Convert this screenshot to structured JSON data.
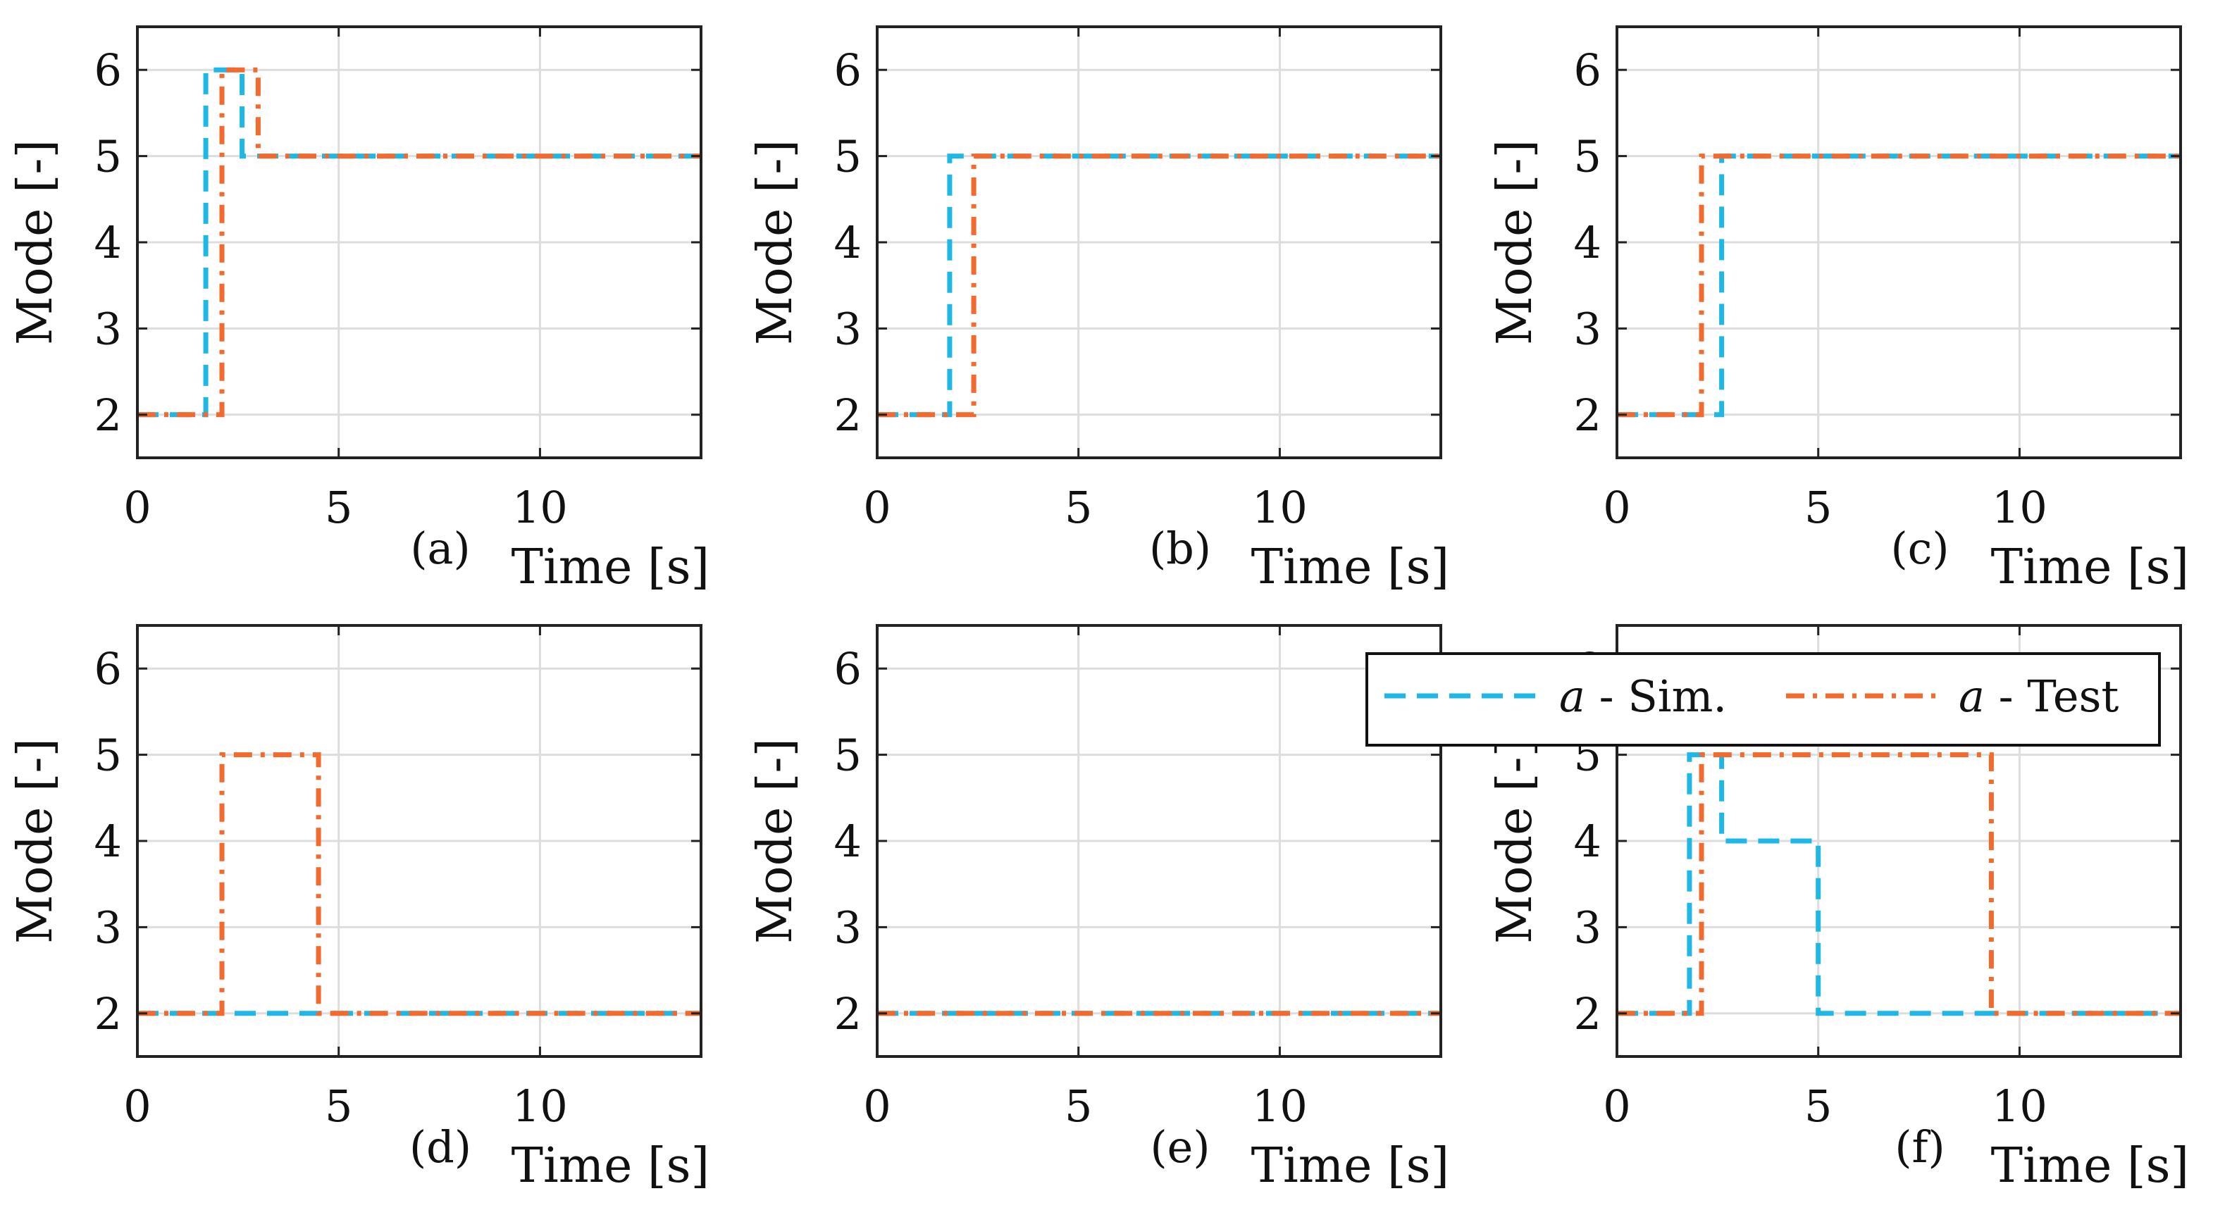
{
  "chart_data": [
    {
      "type": "line",
      "panel": "(a)",
      "xlabel": "Time [s]",
      "ylabel": "Mode [-]",
      "xlim": [
        0,
        14
      ],
      "ylim": [
        1.5,
        6.5
      ],
      "xticks": [
        0,
        5,
        10
      ],
      "yticks": [
        2,
        3,
        4,
        5,
        6
      ],
      "grid": true,
      "series": [
        {
          "name": "Sim.",
          "x": [
            0,
            1.7,
            1.7,
            2.6,
            2.6,
            14
          ],
          "y": [
            2,
            2,
            6,
            6,
            5,
            5
          ]
        },
        {
          "name": "Test",
          "x": [
            0,
            2.1,
            2.1,
            3.0,
            3.0,
            14
          ],
          "y": [
            2,
            2,
            6,
            6,
            5,
            5
          ]
        }
      ]
    },
    {
      "type": "line",
      "panel": "(b)",
      "xlabel": "Time [s]",
      "ylabel": "Mode [-]",
      "xlim": [
        0,
        14
      ],
      "ylim": [
        1.5,
        6.5
      ],
      "xticks": [
        0,
        5,
        10
      ],
      "yticks": [
        2,
        3,
        4,
        5,
        6
      ],
      "grid": true,
      "series": [
        {
          "name": "Sim.",
          "x": [
            0,
            1.8,
            1.8,
            14
          ],
          "y": [
            2,
            2,
            5,
            5
          ]
        },
        {
          "name": "Test",
          "x": [
            0,
            2.4,
            2.4,
            14
          ],
          "y": [
            2,
            2,
            5,
            5
          ]
        }
      ]
    },
    {
      "type": "line",
      "panel": "(c)",
      "xlabel": "Time [s]",
      "ylabel": "Mode [-]",
      "xlim": [
        0,
        14
      ],
      "ylim": [
        1.5,
        6.5
      ],
      "xticks": [
        0,
        5,
        10
      ],
      "yticks": [
        2,
        3,
        4,
        5,
        6
      ],
      "grid": true,
      "series": [
        {
          "name": "Sim.",
          "x": [
            0,
            2.6,
            2.6,
            14
          ],
          "y": [
            2,
            2,
            5,
            5
          ]
        },
        {
          "name": "Test",
          "x": [
            0,
            2.1,
            2.1,
            14
          ],
          "y": [
            2,
            2,
            5,
            5
          ]
        }
      ]
    },
    {
      "type": "line",
      "panel": "(d)",
      "xlabel": "Time [s]",
      "ylabel": "Mode [-]",
      "xlim": [
        0,
        14
      ],
      "ylim": [
        1.5,
        6.5
      ],
      "xticks": [
        0,
        5,
        10
      ],
      "yticks": [
        2,
        3,
        4,
        5,
        6
      ],
      "grid": true,
      "series": [
        {
          "name": "Sim.",
          "x": [
            0,
            14
          ],
          "y": [
            2,
            2
          ]
        },
        {
          "name": "Test",
          "x": [
            0,
            2.1,
            2.1,
            4.5,
            4.5,
            14
          ],
          "y": [
            2,
            2,
            5,
            5,
            2,
            2
          ]
        }
      ]
    },
    {
      "type": "line",
      "panel": "(e)",
      "xlabel": "Time [s]",
      "ylabel": "Mode [-]",
      "xlim": [
        0,
        14
      ],
      "ylim": [
        1.5,
        6.5
      ],
      "xticks": [
        0,
        5,
        10
      ],
      "yticks": [
        2,
        3,
        4,
        5,
        6
      ],
      "grid": true,
      "series": [
        {
          "name": "Sim.",
          "x": [
            0,
            14
          ],
          "y": [
            2,
            2
          ]
        },
        {
          "name": "Test",
          "x": [
            0,
            14
          ],
          "y": [
            2,
            2
          ]
        }
      ]
    },
    {
      "type": "line",
      "panel": "(f)",
      "xlabel": "Time [s]",
      "ylabel": "Mode [-]",
      "xlim": [
        0,
        14
      ],
      "ylim": [
        1.5,
        6.5
      ],
      "xticks": [
        0,
        5,
        10
      ],
      "yticks": [
        2,
        3,
        4,
        5,
        6
      ],
      "grid": true,
      "series": [
        {
          "name": "Sim.",
          "x": [
            0,
            1.8,
            1.8,
            2.6,
            2.6,
            5.0,
            5.0,
            14
          ],
          "y": [
            2,
            2,
            5,
            5,
            4,
            4,
            2,
            2
          ]
        },
        {
          "name": "Test",
          "x": [
            0,
            2.1,
            2.1,
            9.3,
            9.3,
            14
          ],
          "y": [
            2,
            2,
            5,
            5,
            2,
            2
          ]
        }
      ]
    }
  ],
  "legend": {
    "placement": "top-right of panel (f)",
    "entries": [
      {
        "var": "a",
        "text": " - Sim.",
        "color": "#1fb8e6",
        "style": "dashed"
      },
      {
        "var": "a",
        "text": " - Test",
        "color": "#f26a2e",
        "style": "dash-dot"
      }
    ]
  },
  "colors": {
    "sim": "#1fb8e6",
    "test": "#f26a2e",
    "grid": "#dddddd",
    "axis": "#222222"
  }
}
